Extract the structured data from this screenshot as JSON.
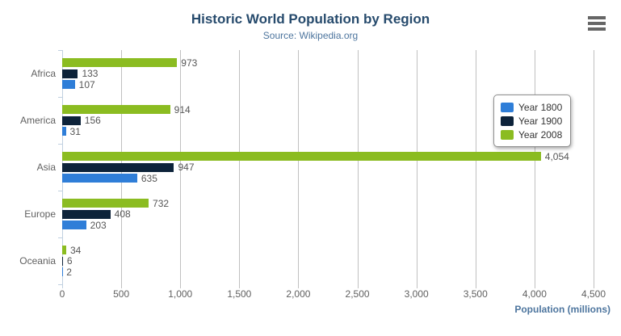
{
  "header": {
    "title": "Historic World Population by Region",
    "subtitle": "Source: Wikipedia.org"
  },
  "menu": {
    "icon": "hamburger-icon"
  },
  "chart_data": {
    "type": "bar",
    "orientation": "horizontal",
    "title": "Historic World Population by Region",
    "subtitle": "Source: Wikipedia.org",
    "categories": [
      "Africa",
      "America",
      "Asia",
      "Europe",
      "Oceania"
    ],
    "series": [
      {
        "name": "Year 1800",
        "color": "#2f7ed8",
        "values": [
          107,
          31,
          635,
          203,
          2
        ]
      },
      {
        "name": "Year 1900",
        "color": "#0d233a",
        "values": [
          133,
          156,
          947,
          408,
          6
        ]
      },
      {
        "name": "Year 2008",
        "color": "#8bbc21",
        "values": [
          973,
          914,
          4054,
          732,
          34
        ]
      }
    ],
    "bar_order_top_to_bottom": [
      "Year 2008",
      "Year 1900",
      "Year 1800"
    ],
    "data_labels": true,
    "xlabel": "Population (millions)",
    "xlim": [
      0,
      4500
    ],
    "xticks": [
      0,
      500,
      1000,
      1500,
      2000,
      2500,
      3000,
      3500,
      4000,
      4500
    ],
    "grid": true,
    "legend_position": "right",
    "legend_entries": [
      "Year 1800",
      "Year 1900",
      "Year 2008"
    ]
  },
  "colors": {
    "title": "#274b6d",
    "subtitle": "#4d759e",
    "axis_title": "#4d759e",
    "gridline": "#c0c0c0",
    "category_axis_line": "#c0d0e0",
    "labels": "#606060",
    "menu_icon": "#666666"
  }
}
